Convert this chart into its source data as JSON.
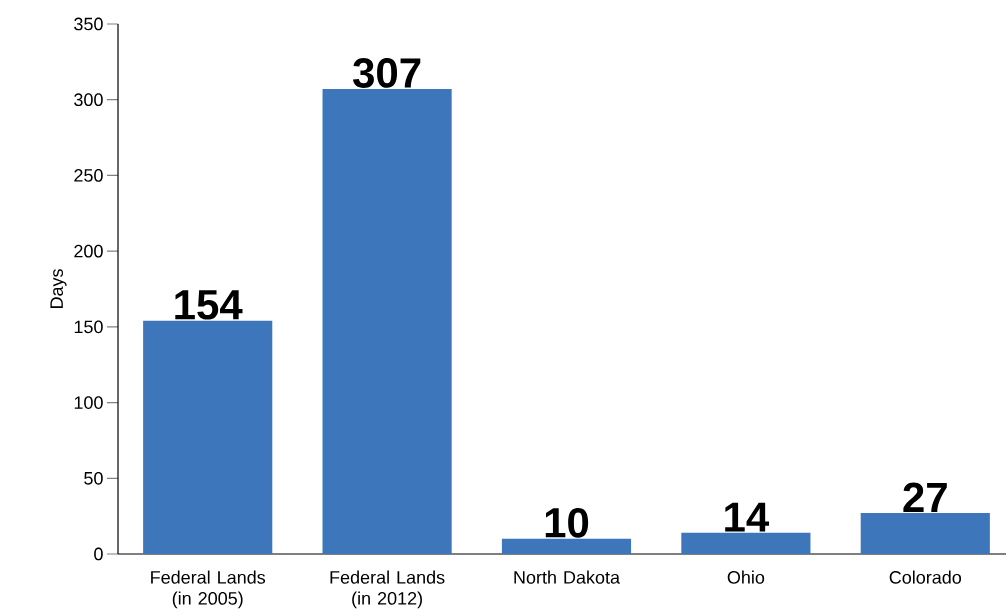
{
  "chart_data": {
    "type": "bar",
    "ylabel": "Days",
    "categories": [
      "Federal Lands (in 2005)",
      "Federal Lands (in 2012)",
      "North Dakota",
      "Ohio",
      "Colorado"
    ],
    "values": [
      154,
      307,
      10,
      14,
      27
    ],
    "color": "#3d76bb",
    "ylim": [
      0,
      350
    ],
    "yticks": [
      0,
      50,
      100,
      150,
      200,
      250,
      300,
      350
    ],
    "data_labels": true
  }
}
